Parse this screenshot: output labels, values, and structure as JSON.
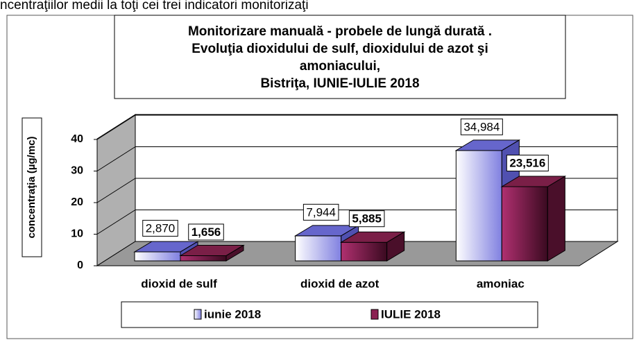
{
  "page_text": "ncentraţiilor medii la toţi cei trei indicatori monitorizaţi",
  "chart_data": {
    "type": "bar3d",
    "title": [
      "Monitorizare manuală - probele de lungă durată .",
      "Evoluţia dioxidului de sulf, dioxidului de azot şi",
      "amoniacului,",
      "Bistriţa,    IUNIE-IULIE 2018"
    ],
    "y_label": "concentraţia (µg/mc)",
    "categories": [
      "dioxid de sulf",
      "dioxid de azot",
      "amoniac"
    ],
    "series": [
      {
        "name": "iunie 2018",
        "color": "#8080e0",
        "values": [
          2.87,
          7.944,
          34.984
        ],
        "value_labels": [
          "2,870",
          "7,944",
          "34,984"
        ]
      },
      {
        "name": "IULIE 2018",
        "color": "#8b2252",
        "values": [
          1.656,
          5.885,
          23.516
        ],
        "value_labels": [
          "1,656",
          "5,885",
          "23,516"
        ]
      }
    ],
    "ylim": [
      0,
      40
    ],
    "yticks": [
      0,
      10,
      20,
      30,
      40
    ],
    "grid": true,
    "legend": "bottom"
  }
}
